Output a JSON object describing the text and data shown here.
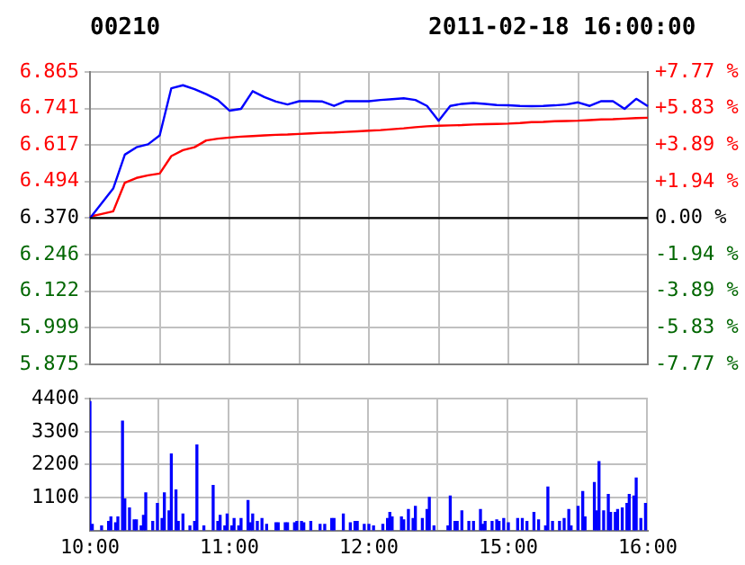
{
  "chart_data": [
    {
      "type": "line",
      "title": "00210",
      "subtitle": "2011-02-18 16:00:00",
      "categories": [
        null,
        null,
        null,
        null,
        null,
        null,
        null,
        null,
        null,
        null,
        null,
        null,
        null,
        null,
        null,
        null,
        null,
        null,
        null,
        null,
        null,
        null,
        null,
        null,
        null,
        null,
        null,
        null,
        null,
        null,
        null,
        null,
        null,
        null,
        null,
        null,
        null,
        null,
        null,
        null,
        null,
        null,
        null,
        null,
        null,
        null,
        null,
        null,
        null
      ],
      "ylim": [
        5.875,
        6.865
      ],
      "yticks": [
        5.875,
        5.999,
        6.122,
        6.246,
        {
          "value": 6.37,
          "label": "6.370"
        },
        6.494,
        6.617,
        6.741,
        6.865
      ],
      "y2lim": [
        -7.77,
        7.77
      ],
      "y2ticks": [
        {
          "value": -7.77,
          "label": "-7.77 %"
        },
        {
          "value": -5.83,
          "label": "-5.83 %"
        },
        {
          "value": -3.89,
          "label": "-3.89 %"
        },
        {
          "value": -1.94,
          "label": "-1.94 %"
        },
        {
          "value": 0,
          "label": "0.00 %"
        },
        {
          "value": 1.94,
          "label": "+1.94 %"
        },
        {
          "value": 3.89,
          "label": "+3.89 %"
        },
        {
          "value": 5.83,
          "label": "+5.83 %"
        },
        {
          "value": 7.77,
          "label": "+7.77 %"
        }
      ],
      "tick_labels": "y",
      "grid": true,
      "legend": false,
      "marker": "none",
      "ref_lines": [
        {
          "axis": "y",
          "value": 6.37,
          "color": "#000000"
        }
      ],
      "series": [
        {
          "color": "#0000ff",
          "values": [
            6.37,
            6.42,
            6.47,
            6.585,
            6.61,
            6.62,
            6.65,
            6.81,
            6.82,
            6.807,
            6.79,
            6.77,
            6.734,
            6.74,
            6.8,
            6.78,
            6.765,
            6.755,
            6.766,
            6.766,
            6.765,
            6.75,
            6.766,
            6.766,
            6.766,
            6.77,
            6.773,
            6.776,
            6.77,
            6.75,
            6.7,
            6.75,
            6.757,
            6.76,
            6.757,
            6.753,
            6.752,
            6.75,
            6.749,
            6.75,
            6.752,
            6.755,
            6.762,
            6.75,
            6.766,
            6.766,
            6.74,
            6.774,
            6.749
          ]
        },
        {
          "color": "#ff0000",
          "values": [
            6.375,
            6.384,
            6.393,
            6.49,
            6.506,
            6.515,
            6.521,
            6.58,
            6.6,
            6.61,
            6.633,
            6.639,
            6.643,
            6.646,
            6.648,
            6.65,
            6.652,
            6.653,
            6.655,
            6.657,
            6.659,
            6.66,
            6.662,
            6.664,
            6.666,
            6.668,
            6.671,
            6.674,
            6.678,
            6.681,
            6.683,
            6.684,
            6.685,
            6.687,
            6.688,
            6.689,
            6.69,
            6.692,
            6.695,
            6.696,
            6.698,
            6.699,
            6.7,
            6.702,
            6.704,
            6.705,
            6.707,
            6.709,
            6.71
          ]
        }
      ]
    },
    {
      "type": "bar",
      "categories": [
        "10:00",
        null,
        null,
        null,
        null,
        null,
        null,
        null,
        null,
        null,
        null,
        null,
        null,
        null,
        null,
        null,
        null,
        null,
        null,
        null,
        null,
        null,
        null,
        null,
        null,
        null,
        null,
        null,
        null,
        null,
        null,
        null,
        null,
        null,
        null,
        null,
        null,
        null,
        null,
        null,
        null,
        null,
        null,
        null,
        null,
        null,
        null,
        null,
        null,
        null,
        null,
        null,
        null,
        null,
        null,
        null,
        null,
        null,
        null,
        null,
        "11:00",
        null,
        null,
        null,
        null,
        null,
        null,
        null,
        null,
        null,
        null,
        null,
        null,
        null,
        null,
        null,
        null,
        null,
        null,
        null,
        null,
        null,
        null,
        null,
        null,
        null,
        null,
        null,
        null,
        null,
        null,
        null,
        null,
        null,
        null,
        null,
        null,
        null,
        null,
        null,
        null,
        null,
        null,
        null,
        null,
        null,
        null,
        null,
        null,
        null,
        null,
        null,
        null,
        null,
        null,
        null,
        null,
        null,
        null,
        null,
        "12:00",
        null,
        null,
        null,
        null,
        null,
        null,
        null,
        null,
        null,
        null,
        null,
        null,
        null,
        null,
        null,
        null,
        null,
        null,
        null,
        null,
        null,
        null,
        null,
        null,
        null,
        null,
        null,
        null,
        null,
        null,
        null,
        null,
        null,
        null,
        null,
        null,
        null,
        null,
        null,
        null,
        null,
        null,
        null,
        null,
        null,
        null,
        null,
        null,
        null,
        null,
        null,
        null,
        null,
        null,
        null,
        null,
        null,
        null,
        null,
        "15:00",
        null,
        null,
        null,
        null,
        null,
        null,
        null,
        null,
        null,
        null,
        null,
        null,
        null,
        null,
        null,
        null,
        null,
        null,
        null,
        null,
        null,
        null,
        null,
        null,
        null,
        null,
        null,
        null,
        null,
        null,
        null,
        null,
        null,
        null,
        null,
        null,
        null,
        null,
        null,
        null,
        null,
        null,
        null,
        null,
        null,
        null,
        null,
        null,
        null,
        null,
        null,
        null,
        null,
        null,
        null,
        null,
        null,
        null,
        null,
        "16:00"
      ],
      "ylim": [
        0,
        4400
      ],
      "yticks": [
        1100,
        2200,
        3300,
        4400
      ],
      "grid": true,
      "legend": false,
      "color": "#0000ff",
      "values": [
        4300,
        200,
        null,
        null,
        null,
        150,
        null,
        null,
        300,
        450,
        null,
        250,
        450,
        null,
        3650,
        1050,
        null,
        750,
        null,
        350,
        350,
        null,
        150,
        500,
        1250,
        null,
        null,
        300,
        null,
        900,
        null,
        400,
        1250,
        null,
        650,
        2550,
        null,
        1350,
        300,
        null,
        550,
        null,
        null,
        150,
        null,
        300,
        2850,
        null,
        null,
        150,
        null,
        null,
        null,
        1500,
        null,
        300,
        500,
        null,
        150,
        550,
        null,
        150,
        400,
        null,
        150,
        400,
        null,
        null,
        1000,
        250,
        550,
        null,
        300,
        null,
        400,
        null,
        200,
        null,
        null,
        null,
        250,
        250,
        null,
        null,
        250,
        250,
        null,
        null,
        250,
        300,
        null,
        300,
        250,
        null,
        null,
        300,
        null,
        null,
        null,
        200,
        null,
        200,
        null,
        null,
        400,
        400,
        null,
        null,
        null,
        550,
        null,
        null,
        250,
        null,
        300,
        300,
        null,
        null,
        200,
        null,
        200,
        null,
        150,
        null,
        null,
        null,
        200,
        null,
        400,
        600,
        450,
        null,
        null,
        null,
        450,
        350,
        null,
        700,
        null,
        400,
        800,
        null,
        null,
        400,
        null,
        700,
        1100,
        null,
        150,
        null,
        null,
        null,
        null,
        null,
        150,
        1150,
        null,
        300,
        300,
        null,
        650,
        null,
        null,
        300,
        null,
        300,
        null,
        null,
        700,
        200,
        300,
        null,
        null,
        300,
        null,
        350,
        300,
        null,
        400,
        null,
        250,
        null,
        null,
        null,
        400,
        null,
        400,
        null,
        300,
        null,
        null,
        600,
        null,
        350,
        null,
        null,
        150,
        1450,
        null,
        300,
        null,
        null,
        300,
        null,
        400,
        null,
        700,
        150,
        null,
        null,
        800,
        null,
        1300,
        450,
        null,
        null,
        null,
        1600,
        650,
        2300,
        null,
        650,
        null,
        1200,
        600,
        null,
        600,
        700,
        null,
        750,
        null,
        900,
        1200,
        null,
        1150,
        1750,
        null,
        400,
        null,
        900,
        null
      ]
    }
  ]
}
